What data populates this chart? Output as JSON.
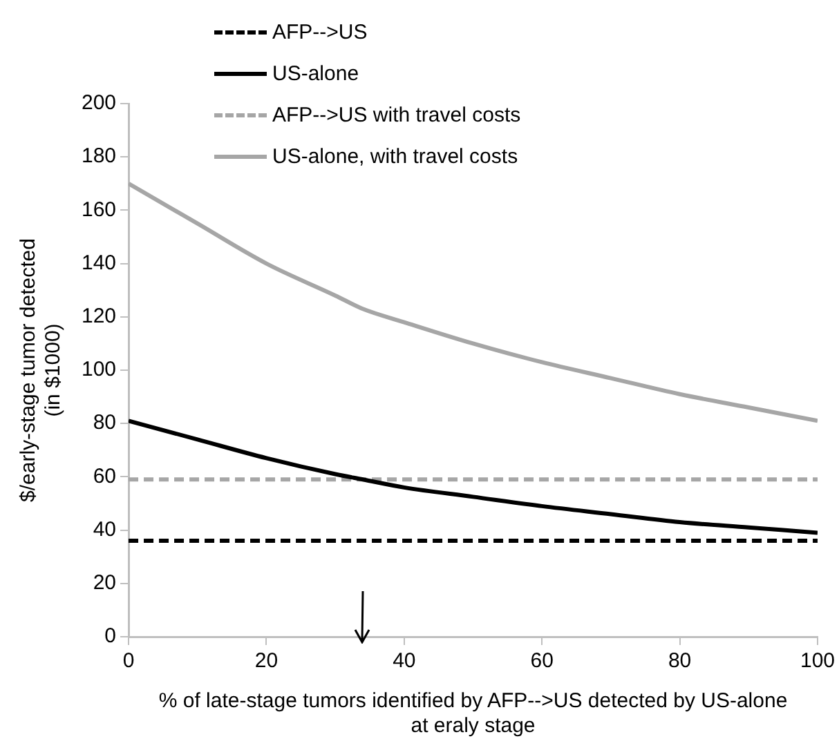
{
  "chart_data": {
    "type": "line",
    "xlabel": "% of late-stage tumors identified by AFP-->US detected by US-alone\nat eraly stage",
    "ylabel": "$/early-stage tumor detected\n(in $1000)",
    "x": [
      0,
      10,
      20,
      30,
      34,
      40,
      50,
      60,
      70,
      80,
      90,
      100
    ],
    "xlim": [
      0,
      100
    ],
    "xticks": [
      0,
      20,
      40,
      60,
      80,
      100
    ],
    "ylim": [
      0,
      200
    ],
    "yticks": [
      0,
      20,
      40,
      60,
      80,
      100,
      120,
      140,
      160,
      180,
      200
    ],
    "grid": false,
    "legend": "top left",
    "marker": "none",
    "series": [
      {
        "name": "AFP-->US",
        "color": "#000000",
        "line_style": "dashed",
        "values": [
          36,
          36,
          36,
          36,
          36,
          36,
          36,
          36,
          36,
          36,
          36,
          36
        ]
      },
      {
        "name": "US-alone",
        "color": "#000000",
        "line_style": "solid",
        "values": [
          81,
          74,
          67,
          61,
          59,
          56,
          52.5,
          49,
          46,
          43,
          41,
          39
        ]
      },
      {
        "name": "AFP-->US with travel costs",
        "color": "#a6a6a6",
        "line_style": "dashed",
        "values": [
          59,
          59,
          59,
          59,
          59,
          59,
          59,
          59,
          59,
          59,
          59,
          59
        ]
      },
      {
        "name": "US-alone, with travel costs",
        "color": "#a6a6a6",
        "line_style": "solid",
        "values": [
          170,
          155,
          140,
          128,
          123,
          118,
          110,
          103,
          97,
          91,
          86,
          81
        ]
      }
    ]
  }
}
